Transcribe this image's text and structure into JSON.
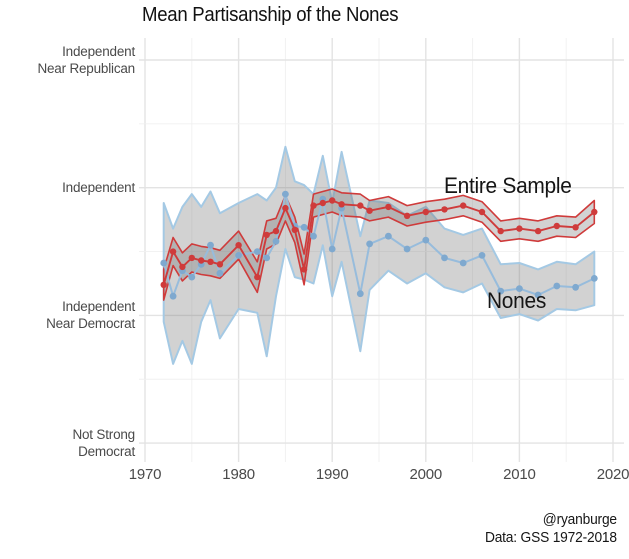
{
  "title": "Mean Partisanship of the Nones",
  "annotations": {
    "entire_sample": "Entire Sample",
    "nones": "Nones"
  },
  "caption": {
    "line1": "@ryanburge",
    "line2": "Data: GSS 1972-2018"
  },
  "colors": {
    "entire_sample_line": "#cf3b3b",
    "entire_sample_dot": "#cf3b3b",
    "nones_line": "#97bcdc",
    "nones_dot": "#7fa9cf",
    "nones_ribbon_edge": "#a4c9e4",
    "ribbon_fill": "rgba(115,115,115,0.32)",
    "grid_major": "#e3e3e3",
    "grid_minor": "#f0f0f0",
    "axis_text": "#4a4a4a",
    "title_text": "#111111"
  },
  "chart_data": {
    "type": "line",
    "title": "Mean Partisanship of the Nones",
    "xlabel": "",
    "ylabel": "",
    "grid": true,
    "legend_position": "direct-labels-on-chart",
    "note": "GSS 7-point party ID scale; shaded ribbons are confidence intervals around each series mean",
    "x_axis": {
      "range": [
        1969.4,
        2021.2
      ],
      "tick_labels": [
        "1970",
        "1980",
        "1990",
        "2000",
        "2010",
        "2020"
      ],
      "ticks": [
        1970,
        1980,
        1990,
        2000,
        2010,
        2020
      ],
      "minor_step": 5
    },
    "y_axis": {
      "range": [
        1.85,
        5.17
      ],
      "minor_step": 0.5,
      "ticks": [
        {
          "value": 5,
          "label": "Independent\nNear Republican"
        },
        {
          "value": 4,
          "label": "Independent"
        },
        {
          "value": 3,
          "label": "Independent\nNear Democrat"
        },
        {
          "value": 2,
          "label": "Not Strong\nDemocrat"
        }
      ]
    },
    "x": [
      1972,
      1973,
      1974,
      1975,
      1976,
      1977,
      1978,
      1980,
      1982,
      1983,
      1984,
      1985,
      1986,
      1987,
      1988,
      1989,
      1990,
      1991,
      1993,
      1994,
      1996,
      1998,
      2000,
      2002,
      2004,
      2006,
      2008,
      2010,
      2012,
      2014,
      2016,
      2018
    ],
    "series": [
      {
        "name": "Entire Sample",
        "values": [
          3.24,
          3.5,
          3.38,
          3.45,
          3.43,
          3.42,
          3.4,
          3.55,
          3.3,
          3.63,
          3.66,
          3.84,
          3.67,
          3.36,
          3.86,
          3.88,
          3.9,
          3.87,
          3.86,
          3.82,
          3.85,
          3.78,
          3.81,
          3.83,
          3.86,
          3.81,
          3.66,
          3.68,
          3.66,
          3.7,
          3.69,
          3.81
        ],
        "ci_lo": [
          3.12,
          3.39,
          3.27,
          3.34,
          3.32,
          3.31,
          3.29,
          3.44,
          3.18,
          3.52,
          3.56,
          3.74,
          3.57,
          3.24,
          3.77,
          3.79,
          3.81,
          3.78,
          3.77,
          3.74,
          3.77,
          3.7,
          3.73,
          3.75,
          3.78,
          3.73,
          3.58,
          3.6,
          3.58,
          3.62,
          3.61,
          3.72
        ],
        "ci_hi": [
          3.36,
          3.61,
          3.49,
          3.56,
          3.54,
          3.53,
          3.51,
          3.66,
          3.42,
          3.74,
          3.76,
          3.94,
          3.77,
          3.48,
          3.95,
          3.97,
          3.99,
          3.96,
          3.95,
          3.9,
          3.93,
          3.86,
          3.89,
          3.91,
          3.94,
          3.89,
          3.74,
          3.76,
          3.74,
          3.78,
          3.77,
          3.9
        ]
      },
      {
        "name": "Nones",
        "values": [
          3.41,
          3.15,
          3.35,
          3.3,
          3.4,
          3.55,
          3.33,
          3.47,
          3.5,
          3.45,
          3.58,
          3.95,
          3.7,
          3.69,
          3.62,
          3.91,
          3.52,
          3.84,
          3.17,
          3.56,
          3.62,
          3.52,
          3.59,
          3.45,
          3.41,
          3.47,
          3.19,
          3.21,
          3.16,
          3.23,
          3.22,
          3.29
        ],
        "ci_lo": [
          2.95,
          2.62,
          2.8,
          2.62,
          2.95,
          3.12,
          2.82,
          3.05,
          3.02,
          2.68,
          3.15,
          3.52,
          3.3,
          3.28,
          3.25,
          3.55,
          3.15,
          3.42,
          2.72,
          3.2,
          3.35,
          3.25,
          3.33,
          3.22,
          3.18,
          3.25,
          2.98,
          3.01,
          2.96,
          3.05,
          3.04,
          3.08
        ],
        "ci_hi": [
          3.88,
          3.68,
          3.85,
          3.95,
          3.85,
          3.97,
          3.8,
          3.88,
          3.95,
          3.9,
          4.0,
          4.32,
          4.05,
          4.02,
          3.95,
          4.25,
          3.88,
          4.28,
          3.62,
          3.9,
          3.88,
          3.78,
          3.85,
          3.68,
          3.63,
          3.68,
          3.4,
          3.41,
          3.36,
          3.42,
          3.4,
          3.5
        ]
      }
    ]
  }
}
